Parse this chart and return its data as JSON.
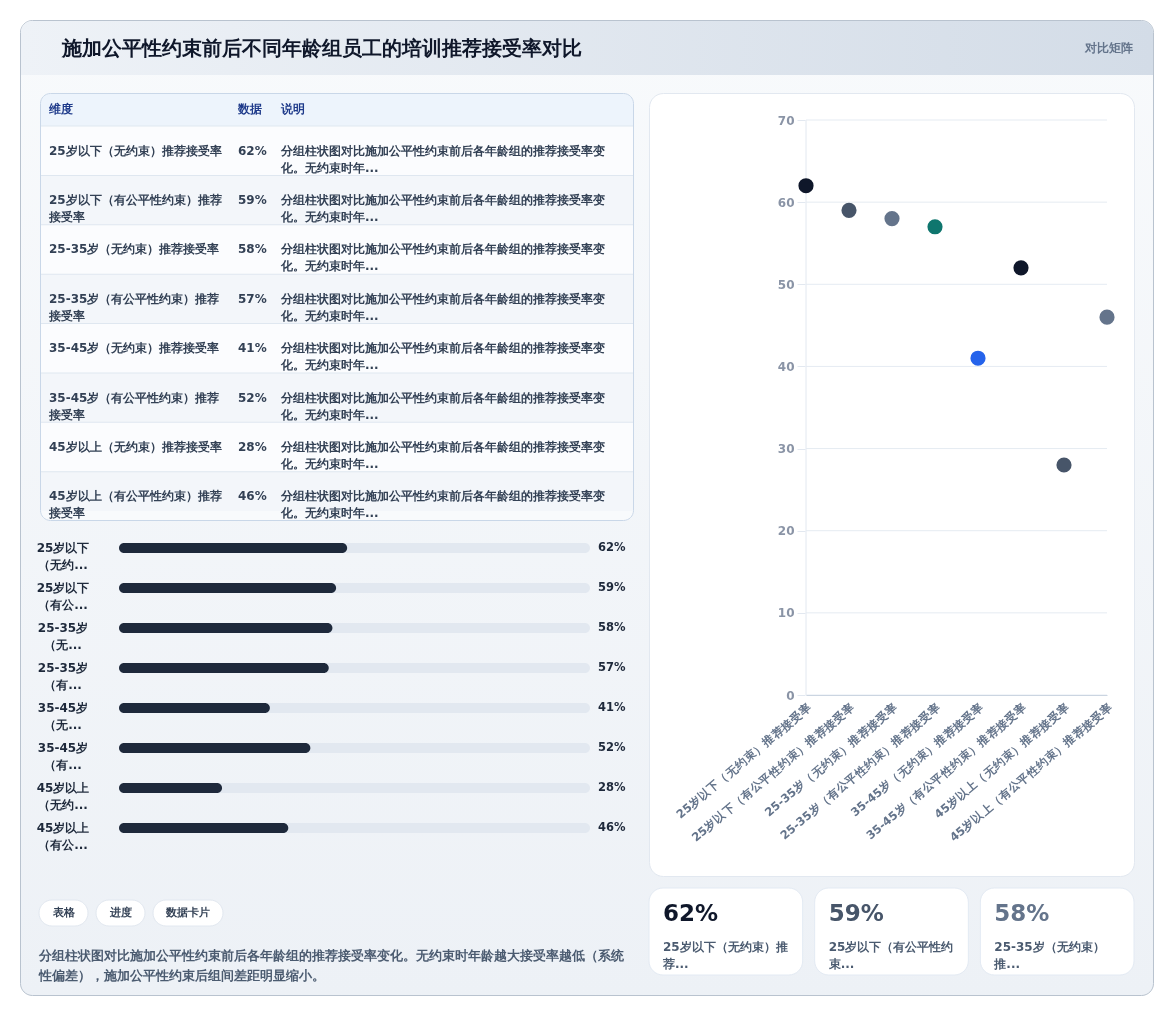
{
  "chart_data": [
    {
      "type": "other",
      "title": "施加公平性约束前后不同年龄组员工的培训推荐接受率对比",
      "annotations": [
        "对比矩阵"
      ]
    },
    {
      "type": "other",
      "annotations": [
        "维度",
        "数据",
        "说明",
        "25岁以下（无约束）推荐接受率",
        "62%",
        "分组柱状图对比施加公平性约束前后各年龄组的推荐接受率变化。无约束时年...",
        "25岁以下（有公平性约束）推荐接受率",
        "59%",
        "分组柱状图对比施加公平性约束前后各年龄组的推荐接受率变化。无约束时年...",
        "25-35岁（无约束）推荐接受率",
        "58%",
        "分组柱状图对比施加公平性约束前后各年龄组的推荐接受率变化。无约束时年...",
        "25-35岁（有公平性约束）推荐接受率",
        "57%",
        "分组柱状图对比施加公平性约束前后各年龄组的推荐接受率变化。无约束时年...",
        "35-45岁（无约束）推荐接受率",
        "41%",
        "分组柱状图对比施加公平性约束前后各年龄组的推荐接受率变化。无约束时年...",
        "35-45岁（有公平性约束）推荐接受率",
        "52%",
        "分组柱状图对比施加公平性约束前后各年龄组的推荐接受率变化。无约束时年...",
        "45岁以上（无约束）推荐接受率",
        "28%",
        "分组柱状图对比施加公平性约束前后各年龄组的推荐接受率变化。无约束时年...",
        "45岁以上（有公平性约束）推荐接受率",
        "46%",
        "分组柱状图对比施加公平性约束前后各年龄组的推荐接受率变化。无约束时年..."
      ]
    },
    {
      "type": "bar",
      "orientation": "horizontal",
      "tick_labels": "y",
      "categories": [
        "25岁以下（无约...",
        "25岁以下（有公...",
        "25-35岁（无...",
        "25-35岁（有...",
        "35-45岁（无...",
        "35-45岁（有...",
        "45岁以上（无约...",
        "45岁以上（有公..."
      ],
      "values": [
        62,
        59,
        58,
        57,
        41,
        52,
        28,
        46
      ],
      "value_labels": [
        "62%",
        "59%",
        "58%",
        "57%",
        "41%",
        "52%",
        "28%",
        "46%"
      ],
      "color": "#1e293b",
      "xlim": [
        0,
        128
      ]
    },
    {
      "type": "other",
      "annotations": [
        "表格",
        "进度",
        "数据卡片",
        "分组柱状图对比施加公平性约束前后各年龄组的推荐接受率变化。无约束时年龄越大接受率越低（系统性偏差），施加公平性约束后组间差距明显缩小。"
      ]
    },
    {
      "type": "scatter",
      "marker": "circle",
      "grid": "y",
      "categories": [
        "25岁以下（无约束）推荐接受率",
        "25岁以下（有公平性约束）推荐接受率",
        "25-35岁（无约束）推荐接受率",
        "25-35岁（有公平性约束）推荐接受率",
        "35-45岁（无约束）推荐接受率",
        "35-45岁（有公平性约束）推荐接受率",
        "45岁以上（无约束）推荐接受率",
        "45岁以上（有公平性约束）推荐接受率"
      ],
      "values": [
        62,
        59,
        58,
        57,
        41,
        52,
        28,
        46
      ],
      "colors": [
        "#0f172a",
        "#475569",
        "#64748b",
        "#0f766e",
        "#2563eb",
        "#0f172a",
        "#475569",
        "#64748b"
      ],
      "ylim": [
        0,
        70
      ],
      "yticks": [
        0,
        10,
        20,
        30,
        40,
        50,
        60,
        70
      ]
    },
    {
      "type": "other",
      "annotations": [
        "62%",
        "25岁以下（无约束）推荐...",
        "59%",
        "25岁以下（有公平性约束...",
        "58%",
        "25-35岁（无约束）推..."
      ],
      "colors": [
        "#0f172a",
        "#475569",
        "#64748b"
      ]
    }
  ]
}
